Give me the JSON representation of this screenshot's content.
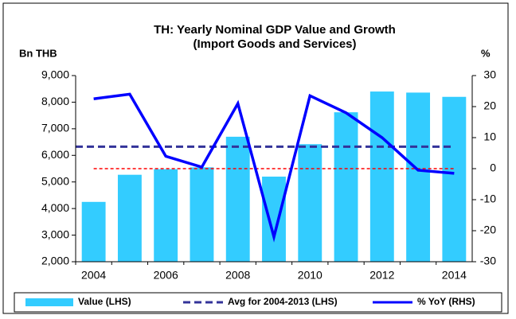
{
  "chart_data": {
    "type": "bar_line",
    "title": "TH: Yearly Nominal GDP Value and Growth",
    "subtitle": "(Import Goods and Services)",
    "y_label": "Bn THB",
    "y2_label": "%",
    "categories": [
      "2004",
      null,
      "2006",
      null,
      "2008",
      null,
      "2010",
      null,
      "2012",
      null,
      "2014"
    ],
    "series": [
      {
        "name": "Value (LHS)",
        "type": "bar",
        "color": "#33ccff",
        "values": [
          4250,
          5270,
          5480,
          5550,
          6700,
          5200,
          6420,
          7620,
          8400,
          8360,
          8200
        ]
      },
      {
        "name": "Avg for 2004-2013 (LHS)",
        "type": "dashed-line",
        "color": "#333399",
        "values": [
          6325,
          6325,
          6325,
          6325,
          6325,
          6325,
          6325,
          6325,
          6325,
          6325,
          6325
        ]
      },
      {
        "name": "% YoY (RHS)",
        "type": "line",
        "axis": "y2",
        "color": "#0000ff",
        "values": [
          22.5,
          24,
          4,
          0.5,
          21,
          -22,
          23.5,
          18,
          10,
          -0.5,
          -1.5
        ]
      }
    ],
    "ylim": [
      2000,
      9000
    ],
    "yticks": [
      {
        "value": 2000,
        "label": "2,000"
      },
      {
        "value": 3000,
        "label": "3,000"
      },
      {
        "value": 4000,
        "label": "4,000"
      },
      {
        "value": 5000,
        "label": "5,000"
      },
      {
        "value": 6000,
        "label": "6,000"
      },
      {
        "value": 7000,
        "label": "7,000"
      },
      {
        "value": 8000,
        "label": "8,000"
      },
      {
        "value": 9000,
        "label": "9,000"
      }
    ],
    "y2lim": [
      -30,
      30
    ],
    "y2ticks": [
      -30,
      -20,
      -10,
      0,
      10,
      20,
      30
    ],
    "y2_reference_line": {
      "value": 0,
      "color": "#ff0000"
    },
    "legend": "bottom"
  }
}
